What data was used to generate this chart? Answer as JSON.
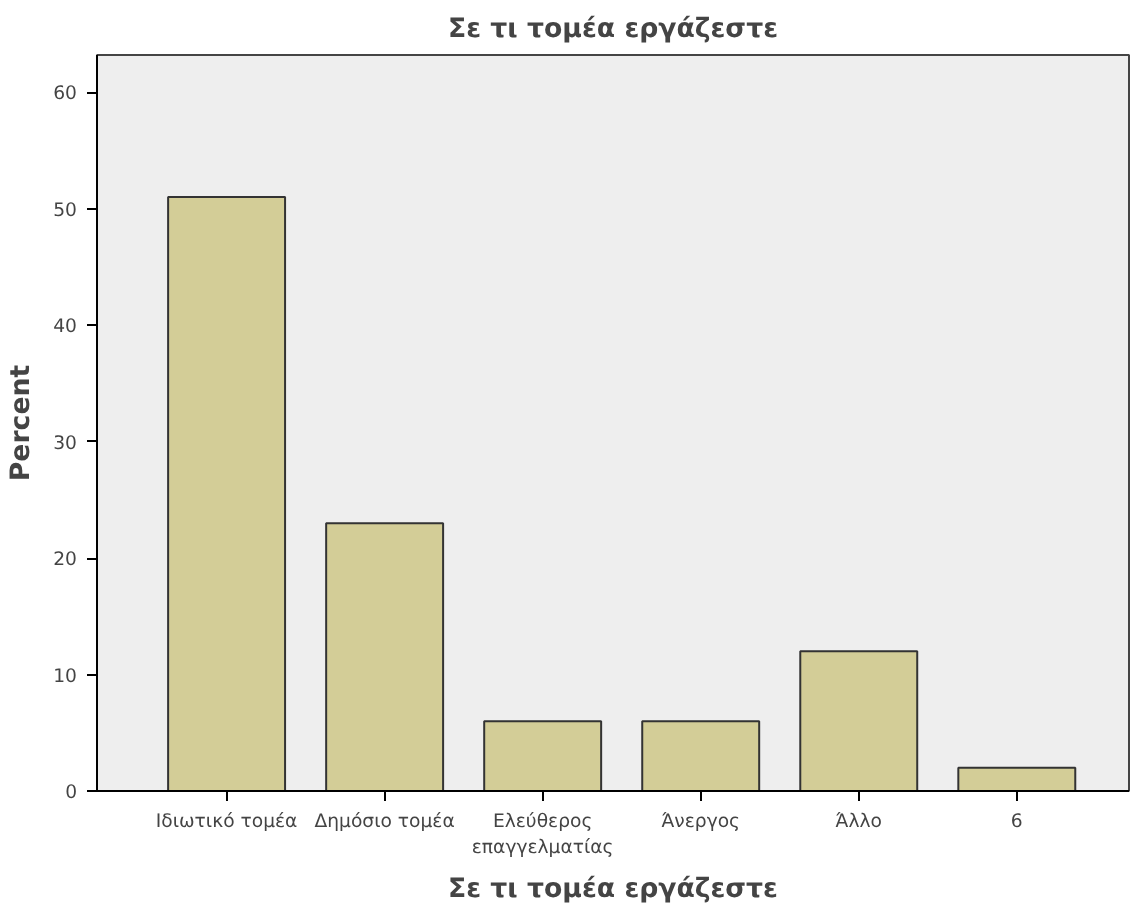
{
  "chart_data": {
    "type": "bar",
    "title": "Σε τι τομέα εργάζεστε",
    "xlabel": "Σε τι τομέα εργάζεστε",
    "ylabel": "Percent",
    "categories": [
      "Ιδιωτικό τομέα",
      "Δημόσιο τομέα",
      "Ελεύθερος\nεπαγγελματίας",
      "Άνεργος",
      "Άλλο",
      "6"
    ],
    "values": [
      51,
      23,
      6,
      6,
      12,
      2
    ],
    "color": "#d3cd97",
    "ylim": [
      0,
      63.2
    ],
    "yticks": [
      0,
      10,
      20,
      30,
      40,
      50,
      60
    ],
    "grid": false
  }
}
